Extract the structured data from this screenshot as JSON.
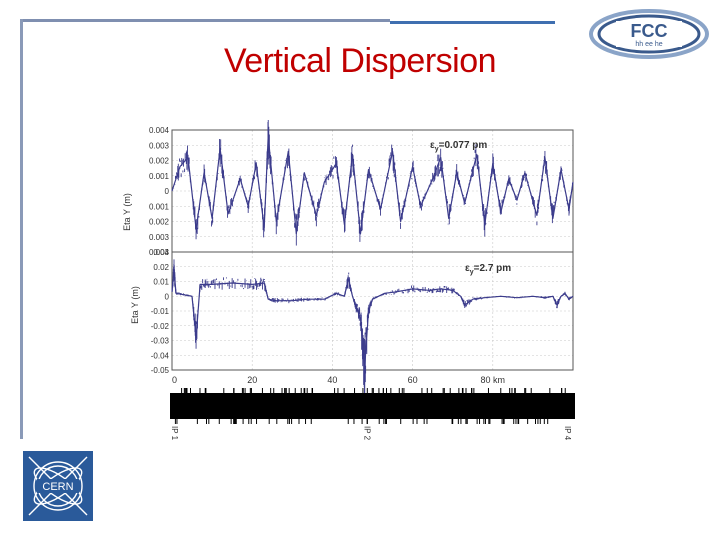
{
  "slide": {
    "title": "Vertical Dispersion"
  },
  "logos": {
    "fcc_text": "FCC",
    "fcc_sub": "hh ee he",
    "cern_text": "CERN"
  },
  "colors": {
    "title": "#c00000",
    "series": "#3c3c8c",
    "frame": "#3f6fb0",
    "cern_blue": "#2a5a9a"
  },
  "chart_data": [
    {
      "type": "line",
      "ylabel": "Eta Y (m)",
      "yticks": [
        "0.004",
        "0.003",
        "0.002",
        "0.001",
        "0",
        "0.001",
        "0.002",
        "0.003",
        "0.004"
      ],
      "ylim": [
        -0.004,
        0.004
      ],
      "xlim": [
        0,
        100
      ],
      "annotation": "εy=0.077 pm",
      "annotation_symbol": "ε",
      "annotation_sub": "y",
      "annotation_value": "=0.077 pm",
      "grid": true,
      "series": [
        {
          "values": [
            {
              "x": 0,
              "y": 0
            },
            {
              "x": 2,
              "y": 0.0016
            },
            {
              "x": 4,
              "y": 0.0022
            },
            {
              "x": 6,
              "y": -0.0025
            },
            {
              "x": 8,
              "y": 0.0012
            },
            {
              "x": 10,
              "y": -0.0018
            },
            {
              "x": 12,
              "y": 0.0028
            },
            {
              "x": 14,
              "y": -0.0015
            },
            {
              "x": 17,
              "y": 0.0008
            },
            {
              "x": 19,
              "y": -0.001
            },
            {
              "x": 21,
              "y": 0.0018
            },
            {
              "x": 23,
              "y": -0.0024
            },
            {
              "x": 24,
              "y": 0.0036
            },
            {
              "x": 26,
              "y": -0.002
            },
            {
              "x": 29,
              "y": 0.0026
            },
            {
              "x": 31,
              "y": -0.0028
            },
            {
              "x": 33,
              "y": 0.0012
            },
            {
              "x": 36,
              "y": -0.0016
            },
            {
              "x": 38,
              "y": 0.0006
            },
            {
              "x": 41,
              "y": 0.0018
            },
            {
              "x": 43,
              "y": -0.0022
            },
            {
              "x": 45,
              "y": 0.0024
            },
            {
              "x": 47,
              "y": -0.0028
            },
            {
              "x": 49,
              "y": 0.0014
            },
            {
              "x": 52,
              "y": -0.0012
            },
            {
              "x": 55,
              "y": 0.0026
            },
            {
              "x": 57,
              "y": -0.002
            },
            {
              "x": 60,
              "y": 0.0016
            },
            {
              "x": 62,
              "y": -0.001
            },
            {
              "x": 65,
              "y": 0.0008
            },
            {
              "x": 67,
              "y": 0.0022
            },
            {
              "x": 69,
              "y": -0.0018
            },
            {
              "x": 71,
              "y": 0.0012
            },
            {
              "x": 73,
              "y": -0.0008
            },
            {
              "x": 76,
              "y": 0.0024
            },
            {
              "x": 78,
              "y": -0.0022
            },
            {
              "x": 80,
              "y": 0.0018
            },
            {
              "x": 82,
              "y": -0.0014
            },
            {
              "x": 84,
              "y": 0.0008
            },
            {
              "x": 86,
              "y": -0.0006
            },
            {
              "x": 88,
              "y": 0.0012
            },
            {
              "x": 91,
              "y": -0.0016
            },
            {
              "x": 93,
              "y": 0.0022
            },
            {
              "x": 95,
              "y": -0.0018
            },
            {
              "x": 97,
              "y": 0.0014
            },
            {
              "x": 99,
              "y": -0.0012
            },
            {
              "x": 100,
              "y": 0.0006
            }
          ]
        }
      ]
    },
    {
      "type": "line",
      "ylabel": "Eta Y (m)",
      "yticks": [
        "0.03",
        "0.02",
        "0.01",
        "0",
        "-0.01",
        "-0.02",
        "-0.03",
        "-0.04",
        "-0.05"
      ],
      "ylim": [
        -0.05,
        0.03
      ],
      "xlim": [
        0,
        100
      ],
      "xticks": [
        "0",
        "20",
        "40",
        "60",
        "80 km"
      ],
      "xtick_values": [
        0,
        20,
        40,
        60,
        80
      ],
      "annotation": "εy=2.7 pm",
      "annotation_symbol": "ε",
      "annotation_sub": "y",
      "annotation_value": "=2.7 pm",
      "grid": true,
      "series": [
        {
          "values": [
            {
              "x": 0,
              "y": 0.003
            },
            {
              "x": 0.5,
              "y": 0.018
            },
            {
              "x": 1,
              "y": 0.002
            },
            {
              "x": 3,
              "y": 0.001
            },
            {
              "x": 5,
              "y": 0.0
            },
            {
              "x": 6,
              "y": -0.028
            },
            {
              "x": 7,
              "y": 0.008
            },
            {
              "x": 10,
              "y": 0.008
            },
            {
              "x": 15,
              "y": 0.009
            },
            {
              "x": 20,
              "y": 0.008
            },
            {
              "x": 23,
              "y": 0.009
            },
            {
              "x": 24,
              "y": -0.002
            },
            {
              "x": 26,
              "y": -0.003
            },
            {
              "x": 30,
              "y": -0.003
            },
            {
              "x": 34,
              "y": -0.002
            },
            {
              "x": 38,
              "y": -0.002
            },
            {
              "x": 41,
              "y": 0.002
            },
            {
              "x": 43,
              "y": 0.0
            },
            {
              "x": 44,
              "y": 0.012
            },
            {
              "x": 45,
              "y": 0.0
            },
            {
              "x": 46,
              "y": -0.008
            },
            {
              "x": 47,
              "y": -0.015
            },
            {
              "x": 48,
              "y": -0.05
            },
            {
              "x": 49,
              "y": -0.01
            },
            {
              "x": 50,
              "y": -0.002
            },
            {
              "x": 53,
              "y": 0.002
            },
            {
              "x": 56,
              "y": 0.003
            },
            {
              "x": 60,
              "y": 0.005
            },
            {
              "x": 64,
              "y": 0.004
            },
            {
              "x": 67,
              "y": 0.005
            },
            {
              "x": 70,
              "y": 0.004
            },
            {
              "x": 72,
              "y": 0.0
            },
            {
              "x": 73,
              "y": -0.006
            },
            {
              "x": 75,
              "y": -0.002
            },
            {
              "x": 78,
              "y": -0.001
            },
            {
              "x": 82,
              "y": 0.0
            },
            {
              "x": 86,
              "y": -0.001
            },
            {
              "x": 90,
              "y": 0.0
            },
            {
              "x": 93,
              "y": -0.001
            },
            {
              "x": 95,
              "y": 0.0
            },
            {
              "x": 96,
              "y": -0.006
            },
            {
              "x": 97,
              "y": 0.0
            },
            {
              "x": 98,
              "y": 0.002
            },
            {
              "x": 99,
              "y": -0.002
            },
            {
              "x": 100,
              "y": 0.0
            }
          ]
        }
      ]
    }
  ],
  "lattice": {
    "ip_labels": [
      "IP 1",
      "IP 2",
      "IP 4"
    ],
    "ip_positions": [
      0,
      48,
      98
    ]
  }
}
